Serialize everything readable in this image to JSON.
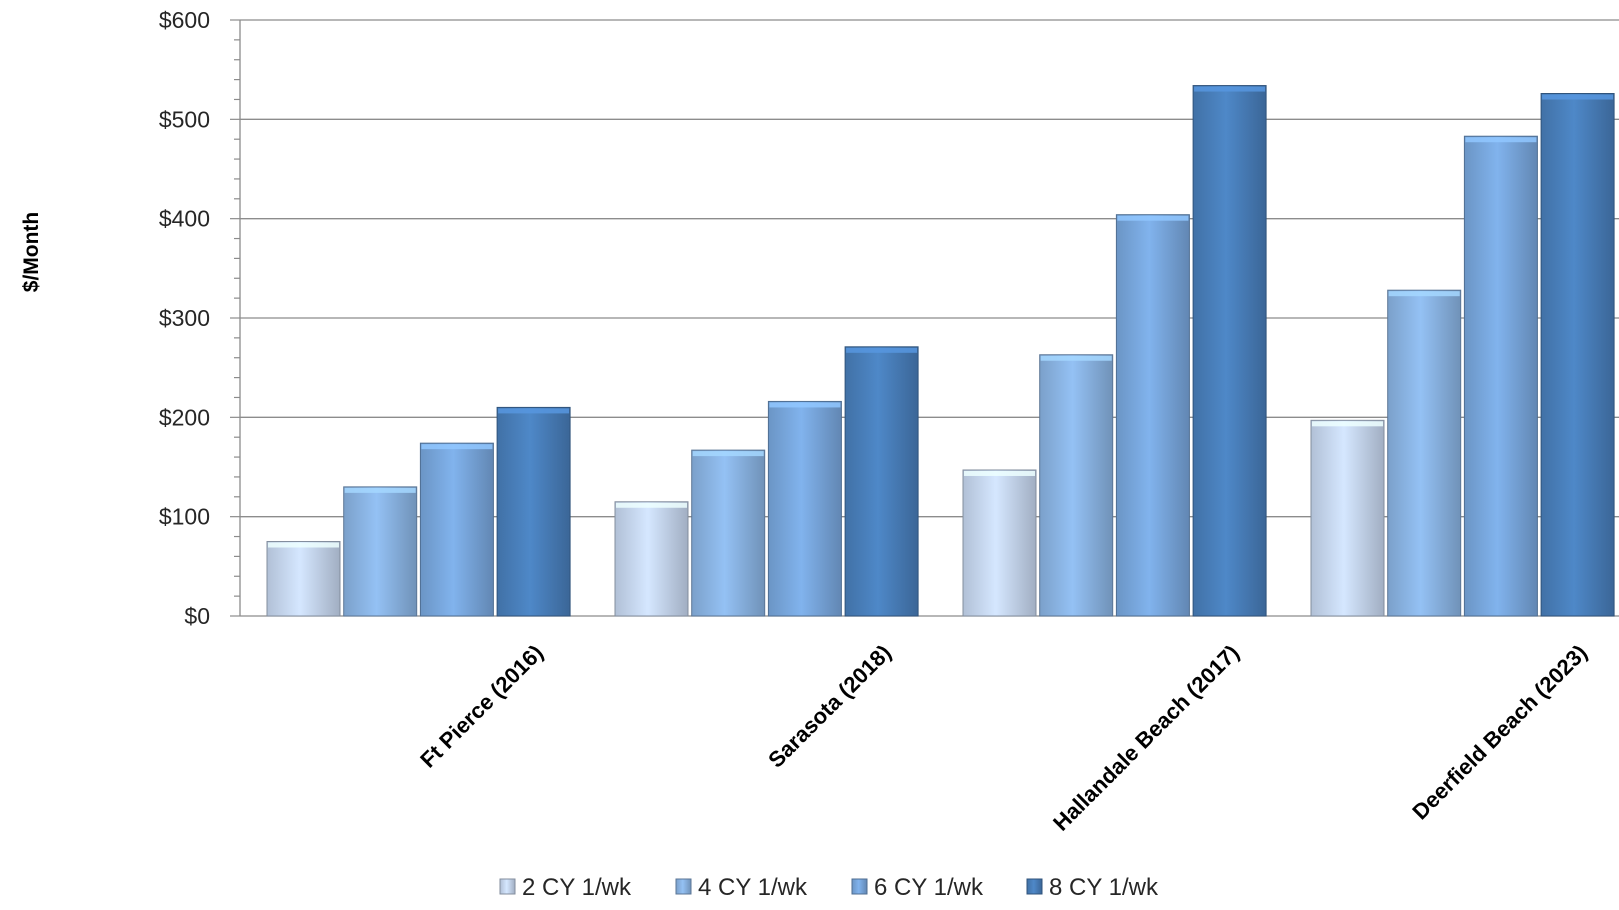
{
  "chart_data": {
    "type": "bar",
    "title": "",
    "xlabel": "",
    "ylabel": "$/Month",
    "ylim": [
      0,
      600
    ],
    "y_ticks": [
      "$0",
      "$100",
      "$200",
      "$300",
      "$400",
      "$500",
      "$600"
    ],
    "y_tick_values": [
      0,
      100,
      200,
      300,
      400,
      500,
      600
    ],
    "grid": true,
    "legend_position": "bottom",
    "categories": [
      "Ft Pierce (2016)",
      "Sarasota (2018)",
      "Hallandale Beach (2017)",
      "Deerfield Beach (2023)"
    ],
    "series": [
      {
        "name": "2 CY 1/wk",
        "values": [
          75,
          115,
          147,
          197
        ],
        "color": "#c9daf3"
      },
      {
        "name": "4 CY 1/wk",
        "values": [
          130,
          167,
          263,
          328
        ],
        "color": "#8cb6e6"
      },
      {
        "name": "6 CY 1/wk",
        "values": [
          174,
          216,
          404,
          483
        ],
        "color": "#7aa9e0"
      },
      {
        "name": "8 CY 1/wk",
        "values": [
          210,
          271,
          534,
          526
        ],
        "color": "#4a80bd"
      }
    ]
  }
}
